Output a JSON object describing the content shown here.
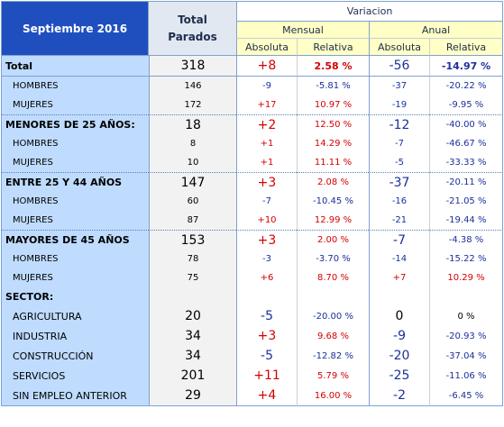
{
  "header": {
    "title": "Septiembre 2016",
    "total_line1": "Total",
    "total_line2": "Parados",
    "variacion": "Variacion",
    "mensual": "Mensual",
    "anual": "Anual",
    "absoluta": "Absoluta",
    "relativa": "Relativa"
  },
  "colors": {
    "header_bg": "#1f4fbf",
    "label_bg": "#bfdcff",
    "subheader_bg": "#ffffc6",
    "positive": "#d40000",
    "negative": "#1c2f9c"
  },
  "rows": [
    {
      "label": "Total",
      "total": "318",
      "m_abs": "+8",
      "m_rel": "2.58 %",
      "a_abs": "-56",
      "a_rel": "-14.97 %"
    },
    {
      "label": "HOMBRES",
      "total": "146",
      "m_abs": "-9",
      "m_rel": "-5.81 %",
      "a_abs": "-37",
      "a_rel": "-20.22 %"
    },
    {
      "label": "MUJERES",
      "total": "172",
      "m_abs": "+17",
      "m_rel": "10.97 %",
      "a_abs": "-19",
      "a_rel": "-9.95 %"
    },
    {
      "label": "MENORES DE 25 AÑOS:",
      "total": "18",
      "m_abs": "+2",
      "m_rel": "12.50 %",
      "a_abs": "-12",
      "a_rel": "-40.00 %"
    },
    {
      "label": "HOMBRES",
      "total": "8",
      "m_abs": "+1",
      "m_rel": "14.29 %",
      "a_abs": "-7",
      "a_rel": "-46.67 %"
    },
    {
      "label": "MUJERES",
      "total": "10",
      "m_abs": "+1",
      "m_rel": "11.11 %",
      "a_abs": "-5",
      "a_rel": "-33.33 %"
    },
    {
      "label": "ENTRE 25 Y 44 AÑOS",
      "total": "147",
      "m_abs": "+3",
      "m_rel": "2.08 %",
      "a_abs": "-37",
      "a_rel": "-20.11 %"
    },
    {
      "label": "HOMBRES",
      "total": "60",
      "m_abs": "-7",
      "m_rel": "-10.45 %",
      "a_abs": "-16",
      "a_rel": "-21.05 %"
    },
    {
      "label": "MUJERES",
      "total": "87",
      "m_abs": "+10",
      "m_rel": "12.99 %",
      "a_abs": "-21",
      "a_rel": "-19.44 %"
    },
    {
      "label": "MAYORES DE 45 AÑOS",
      "total": "153",
      "m_abs": "+3",
      "m_rel": "2.00 %",
      "a_abs": "-7",
      "a_rel": "-4.38 %"
    },
    {
      "label": "HOMBRES",
      "total": "78",
      "m_abs": "-3",
      "m_rel": "-3.70 %",
      "a_abs": "-14",
      "a_rel": "-15.22 %"
    },
    {
      "label": "MUJERES",
      "total": "75",
      "m_abs": "+6",
      "m_rel": "8.70 %",
      "a_abs": "+7",
      "a_rel": "10.29 %"
    },
    {
      "label": "SECTOR:"
    },
    {
      "label": "AGRICULTURA",
      "total": "20",
      "m_abs": "-5",
      "m_rel": "-20.00 %",
      "a_abs": "0",
      "a_rel": "0 %"
    },
    {
      "label": "INDUSTRIA",
      "total": "34",
      "m_abs": "+3",
      "m_rel": "9.68 %",
      "a_abs": "-9",
      "a_rel": "-20.93 %"
    },
    {
      "label": "CONSTRUCCIÓN",
      "total": "34",
      "m_abs": "-5",
      "m_rel": "-12.82 %",
      "a_abs": "-20",
      "a_rel": "-37.04 %"
    },
    {
      "label": "SERVICIOS",
      "total": "201",
      "m_abs": "+11",
      "m_rel": "5.79 %",
      "a_abs": "-25",
      "a_rel": "-11.06 %"
    },
    {
      "label": "SIN EMPLEO ANTERIOR",
      "total": "29",
      "m_abs": "+4",
      "m_rel": "16.00 %",
      "a_abs": "-2",
      "a_rel": "-6.45 %"
    }
  ]
}
